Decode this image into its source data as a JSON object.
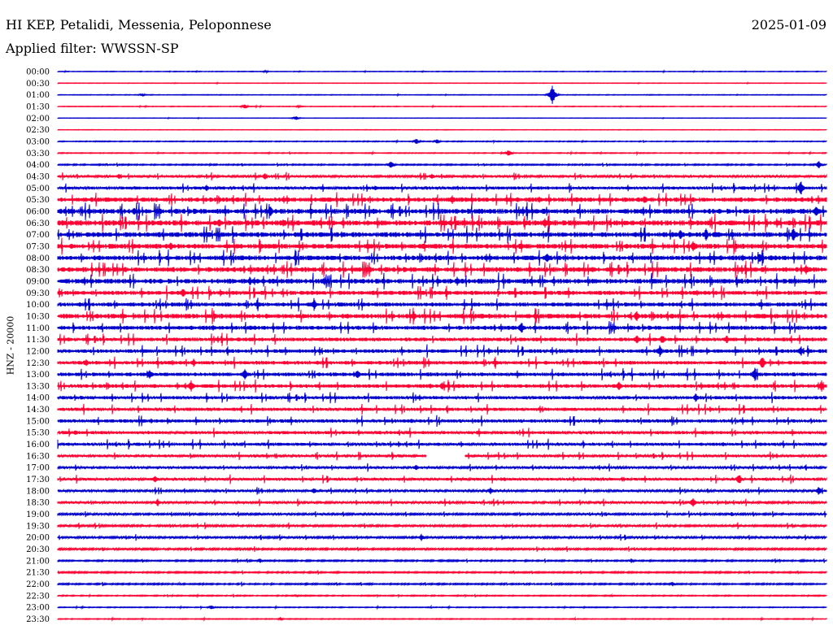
{
  "header": {
    "station": "HI KEP, Petalidi, Messenia, Peloponnese",
    "date": "2025-01-09",
    "filter": "Applied filter: WWSSN-SP",
    "channel_label": "HNZ - 20000"
  },
  "colors": {
    "odd_trace": "#0000cc",
    "even_trace": "#ff0033",
    "text": "#000000",
    "background": "#ffffff"
  },
  "chart_data": {
    "type": "line",
    "title": "HI KEP, Petalidi, Messenia, Peloponnese",
    "ylabel": "HNZ - 20000",
    "xlabel": "",
    "minutes_per_trace": 30,
    "trace_color_cycle": [
      "#0000cc",
      "#ff0033"
    ],
    "row_labels": [
      "00:00",
      "00:30",
      "01:00",
      "01:30",
      "02:00",
      "02:30",
      "03:00",
      "03:30",
      "04:00",
      "04:30",
      "05:00",
      "05:30",
      "06:00",
      "06:30",
      "07:00",
      "07:30",
      "08:00",
      "08:30",
      "09:00",
      "09:30",
      "10:00",
      "10:30",
      "11:00",
      "11:30",
      "12:00",
      "12:30",
      "13:00",
      "13:30",
      "14:00",
      "14:30",
      "15:00",
      "15:30",
      "16:00",
      "16:30",
      "17:00",
      "17:30",
      "18:00",
      "18:30",
      "19:00",
      "19:30",
      "20:00",
      "20:30",
      "21:00",
      "21:30",
      "22:00",
      "22:30",
      "23:00",
      "23:30"
    ],
    "noise_level": [
      0.3,
      0.25,
      0.3,
      0.3,
      0.2,
      0.2,
      0.4,
      0.4,
      0.6,
      1.2,
      1.5,
      2.2,
      2.5,
      2.6,
      2.4,
      2.4,
      2.3,
      2.4,
      2.4,
      2.0,
      2.0,
      2.3,
      2.0,
      1.8,
      1.8,
      1.8,
      1.8,
      1.8,
      1.6,
      1.6,
      1.6,
      1.6,
      1.5,
      1.3,
      1.2,
      1.3,
      1.2,
      1.2,
      1.0,
      1.0,
      1.0,
      0.9,
      0.7,
      0.7,
      0.7,
      0.5,
      0.4,
      0.4
    ],
    "gaps": [
      {
        "row": "16:30",
        "from_minute": 14.4,
        "to_minute": 15.9
      }
    ],
    "events": [
      {
        "row": "00:00",
        "minute": 8.1,
        "amplitude": 1.5
      },
      {
        "row": "01:00",
        "minute": 19.3,
        "amplitude": 14
      },
      {
        "row": "01:00",
        "minute": 3.3,
        "amplitude": 2
      },
      {
        "row": "01:30",
        "minute": 7.3,
        "amplitude": 3
      },
      {
        "row": "01:30",
        "minute": 9.4,
        "amplitude": 1.5
      },
      {
        "row": "02:00",
        "minute": 9.3,
        "amplitude": 3
      },
      {
        "row": "03:00",
        "minute": 14.0,
        "amplitude": 4
      },
      {
        "row": "03:00",
        "minute": 14.8,
        "amplitude": 3
      },
      {
        "row": "03:30",
        "minute": 17.6,
        "amplitude": 5
      },
      {
        "row": "04:00",
        "minute": 13.0,
        "amplitude": 6
      },
      {
        "row": "04:00",
        "minute": 29.7,
        "amplitude": 6
      },
      {
        "row": "04:30",
        "minute": 2.4,
        "amplitude": 4
      },
      {
        "row": "04:30",
        "minute": 8.1,
        "amplitude": 5
      },
      {
        "row": "04:30",
        "minute": 14.6,
        "amplitude": 4
      },
      {
        "row": "05:00",
        "minute": 5.8,
        "amplitude": 5
      },
      {
        "row": "05:00",
        "minute": 12.4,
        "amplitude": 4
      },
      {
        "row": "05:00",
        "minute": 29.0,
        "amplitude": 10
      },
      {
        "row": "05:30",
        "minute": 15.4,
        "amplitude": 6
      },
      {
        "row": "05:30",
        "minute": 22.9,
        "amplitude": 6
      },
      {
        "row": "06:00",
        "minute": 3.0,
        "amplitude": 6
      },
      {
        "row": "06:00",
        "minute": 8.3,
        "amplitude": 7
      },
      {
        "row": "06:00",
        "minute": 29.6,
        "amplitude": 10
      },
      {
        "row": "06:30",
        "minute": 6.3,
        "amplitude": 7
      },
      {
        "row": "06:30",
        "minute": 8.8,
        "amplitude": 6
      },
      {
        "row": "06:30",
        "minute": 19.0,
        "amplitude": 8
      },
      {
        "row": "07:00",
        "minute": 24.3,
        "amplitude": 7
      },
      {
        "row": "07:00",
        "minute": 25.3,
        "amplitude": 8
      },
      {
        "row": "07:00",
        "minute": 28.7,
        "amplitude": 9
      },
      {
        "row": "07:30",
        "minute": 4.4,
        "amplitude": 6
      },
      {
        "row": "07:30",
        "minute": 24.8,
        "amplitude": 8
      },
      {
        "row": "08:00",
        "minute": 19.1,
        "amplitude": 9
      },
      {
        "row": "08:00",
        "minute": 27.4,
        "amplitude": 7
      },
      {
        "row": "08:30",
        "minute": 29.2,
        "amplitude": 8
      },
      {
        "row": "09:00",
        "minute": 7.5,
        "amplitude": 6
      },
      {
        "row": "09:00",
        "minute": 10.4,
        "amplitude": 6
      },
      {
        "row": "09:00",
        "minute": 15.6,
        "amplitude": 7
      },
      {
        "row": "09:30",
        "minute": 4.9,
        "amplitude": 7
      },
      {
        "row": "10:00",
        "minute": 10.0,
        "amplitude": 8
      },
      {
        "row": "10:30",
        "minute": 13.9,
        "amplitude": 6
      },
      {
        "row": "10:30",
        "minute": 22.6,
        "amplitude": 8
      },
      {
        "row": "11:00",
        "minute": 18.1,
        "amplitude": 8
      },
      {
        "row": "11:30",
        "minute": 22.6,
        "amplitude": 7
      },
      {
        "row": "11:30",
        "minute": 23.6,
        "amplitude": 7
      },
      {
        "row": "11:30",
        "minute": 26.1,
        "amplitude": 6
      },
      {
        "row": "12:00",
        "minute": 23.5,
        "amplitude": 8
      },
      {
        "row": "12:00",
        "minute": 29.0,
        "amplitude": 7
      },
      {
        "row": "12:30",
        "minute": 1.1,
        "amplitude": 5
      },
      {
        "row": "12:30",
        "minute": 5.3,
        "amplitude": 6
      },
      {
        "row": "12:30",
        "minute": 27.5,
        "amplitude": 9
      },
      {
        "row": "13:00",
        "minute": 3.6,
        "amplitude": 7
      },
      {
        "row": "13:00",
        "minute": 7.3,
        "amplitude": 8
      },
      {
        "row": "13:00",
        "minute": 11.7,
        "amplitude": 7
      },
      {
        "row": "13:00",
        "minute": 27.2,
        "amplitude": 9
      },
      {
        "row": "13:30",
        "minute": 5.2,
        "amplitude": 9
      },
      {
        "row": "13:30",
        "minute": 15.0,
        "amplitude": 6
      },
      {
        "row": "13:30",
        "minute": 21.9,
        "amplitude": 6
      },
      {
        "row": "13:30",
        "minute": 29.8,
        "amplitude": 8
      },
      {
        "row": "14:00",
        "minute": 24.9,
        "amplitude": 6
      },
      {
        "row": "15:00",
        "minute": 13.8,
        "amplitude": 4
      },
      {
        "row": "15:30",
        "minute": 0.7,
        "amplitude": 4
      },
      {
        "row": "17:00",
        "minute": 14.0,
        "amplitude": 4
      },
      {
        "row": "17:30",
        "minute": 3.8,
        "amplitude": 5
      },
      {
        "row": "17:30",
        "minute": 26.6,
        "amplitude": 8
      },
      {
        "row": "18:00",
        "minute": 10.0,
        "amplitude": 5
      },
      {
        "row": "18:00",
        "minute": 16.9,
        "amplitude": 5
      },
      {
        "row": "18:00",
        "minute": 29.7,
        "amplitude": 6
      },
      {
        "row": "18:30",
        "minute": 3.9,
        "amplitude": 5
      },
      {
        "row": "18:30",
        "minute": 24.8,
        "amplitude": 8
      },
      {
        "row": "19:00",
        "minute": 26.3,
        "amplitude": 3
      },
      {
        "row": "20:00",
        "minute": 14.2,
        "amplitude": 5
      },
      {
        "row": "21:00",
        "minute": 7.9,
        "amplitude": 3
      },
      {
        "row": "21:00",
        "minute": 22.4,
        "amplitude": 3
      },
      {
        "row": "22:00",
        "minute": 24.0,
        "amplitude": 3
      },
      {
        "row": "22:30",
        "minute": 9.3,
        "amplitude": 2
      },
      {
        "row": "23:00",
        "minute": 6.0,
        "amplitude": 3
      },
      {
        "row": "23:30",
        "minute": 8.7,
        "amplitude": 2
      }
    ]
  }
}
